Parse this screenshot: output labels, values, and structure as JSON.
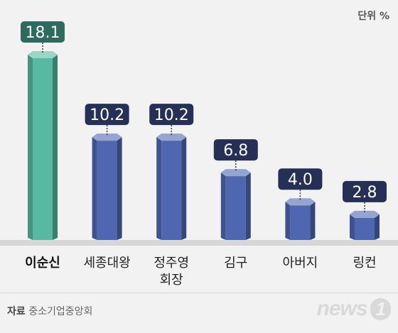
{
  "unit_label": "단위 %",
  "source": {
    "label": "자료",
    "text": "중소기업중앙회"
  },
  "logo": {
    "text": "news",
    "mark": "1"
  },
  "colors": {
    "highlight_bar": "#57b9a0",
    "bar": "#4f67b0",
    "highlight_label_bg": "#2f6a5e",
    "label_bg": "#263056"
  },
  "chart_data": {
    "type": "bar",
    "categories": [
      "이순신",
      "세종대왕",
      "정주영 회장",
      "김구",
      "아버지",
      "링컨"
    ],
    "values": [
      18.1,
      10.2,
      10.2,
      6.8,
      4.0,
      2.8
    ],
    "value_labels": [
      "18.1",
      "10.2",
      "10.2",
      "6.8",
      "4.0",
      "2.8"
    ],
    "highlight": "이순신",
    "unit": "%",
    "ylim": [
      0,
      18.1
    ],
    "grid": false,
    "legend": "none"
  }
}
